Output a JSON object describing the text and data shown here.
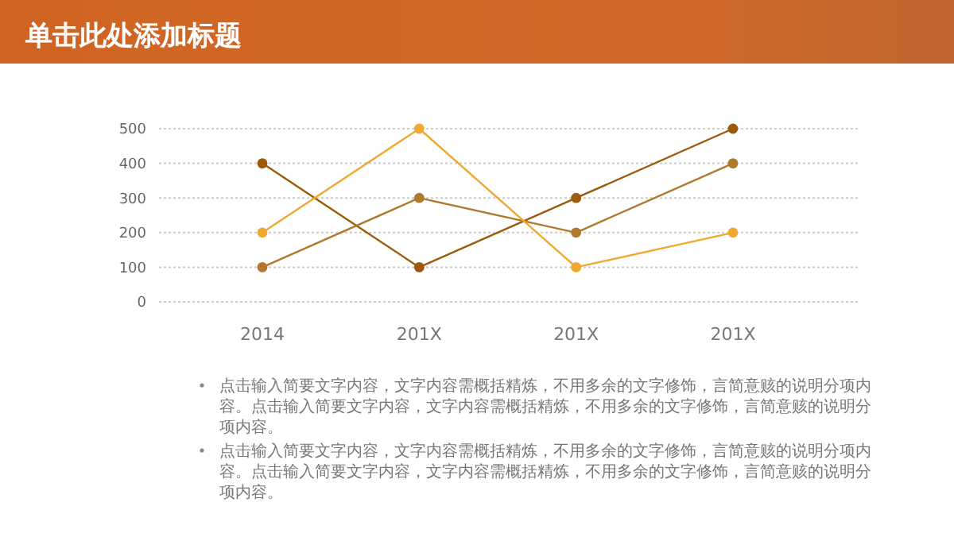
{
  "chart_data": {
    "type": "line",
    "title": "单击此处添加标题",
    "categories": [
      "2014",
      "201X",
      "201X",
      "201X"
    ],
    "series": [
      {
        "color": "#9c5a0c",
        "values": [
          400,
          100,
          300,
          500
        ]
      },
      {
        "color": "#b07a2e",
        "values": [
          100,
          300,
          200,
          400
        ]
      },
      {
        "color": "#f0a830",
        "values": [
          200,
          500,
          100,
          200
        ]
      }
    ],
    "ylim": [
      0,
      500
    ],
    "yticks": [
      0,
      100,
      200,
      300,
      400,
      500
    ],
    "grid": "y",
    "marker": "circle",
    "line_style": "solid",
    "annotations": [
      "点击输入简要文字内容，文字内容需概括精炼，不用多余的文字修饰，言简意赅的说明分项内容。点击输入简要文字内容，文字内容需概括精炼，不用多余的文字修饰，言简意赅的说明分项内容。",
      "点击输入简要文字内容，文字内容需概括精炼，不用多余的文字修饰，言简意赅的说明分项内容。点击输入简要文字内容，文字内容需概括精炼，不用多余的文字修饰，言简意赅的说明分项内容。"
    ]
  }
}
